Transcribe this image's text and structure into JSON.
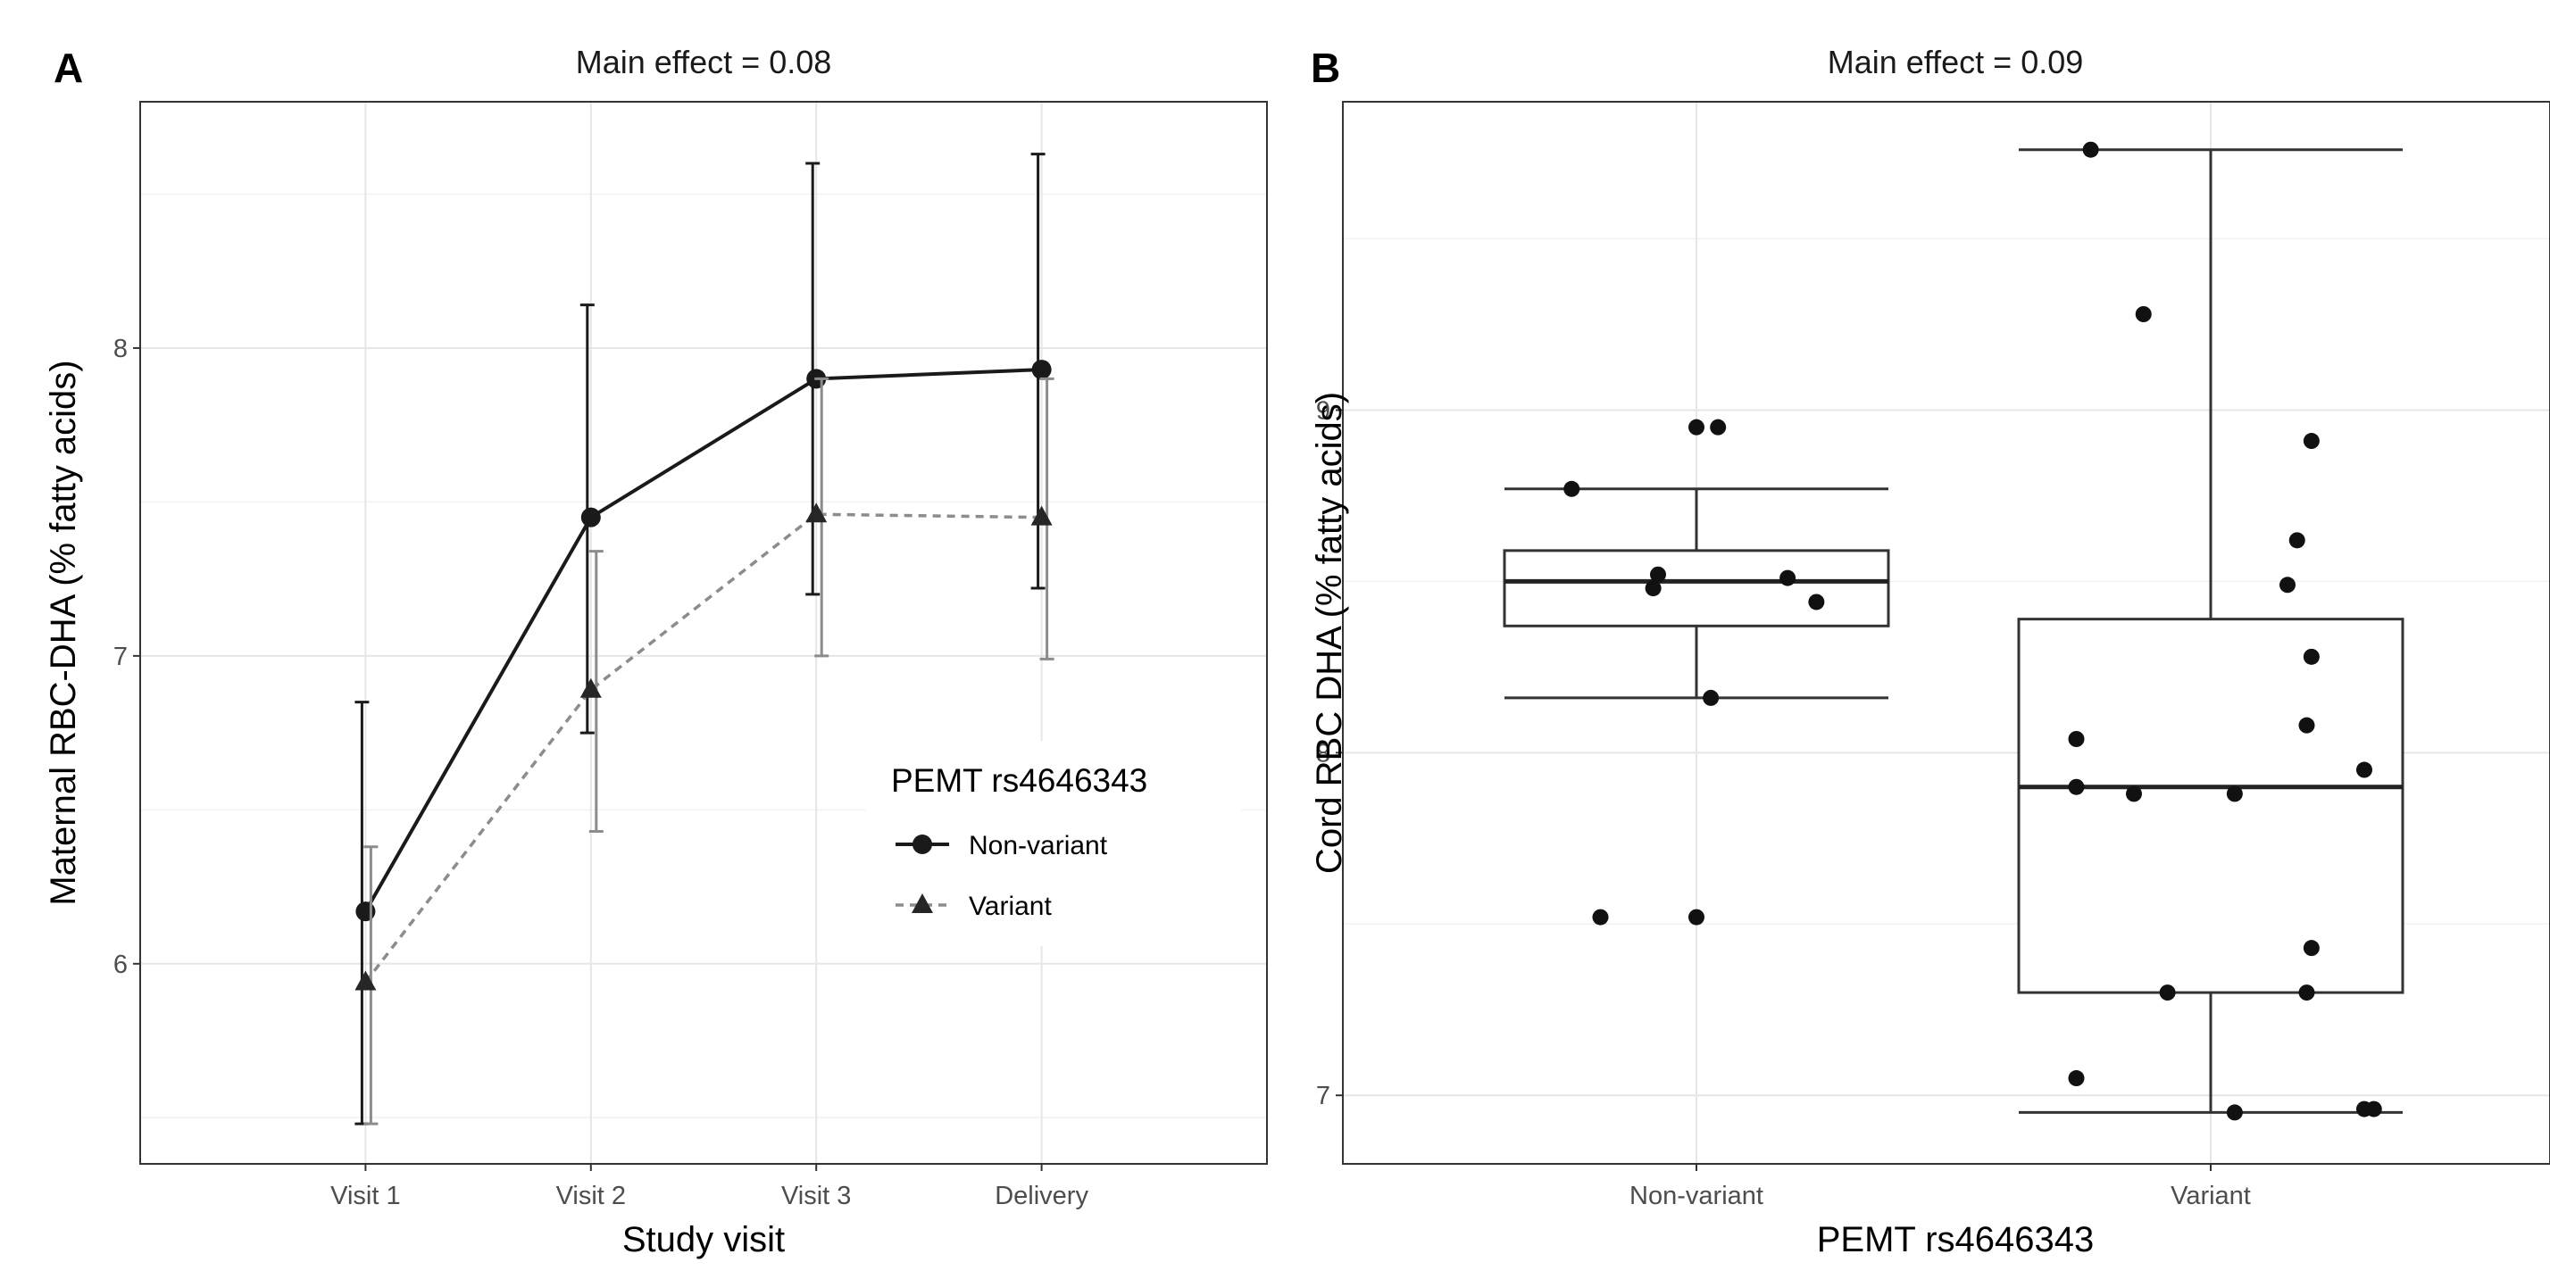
{
  "colors": {
    "non_variant": "#1a1a1a",
    "variant_line": "#8c8c8c",
    "variant_marker": "#262626",
    "grid": "#e6e6e6"
  },
  "panels": [
    {
      "letter": "A",
      "facet_title": "Main effect = 0.08"
    },
    {
      "letter": "B",
      "facet_title": "Main effect = 0.09"
    }
  ],
  "chart_data": [
    {
      "type": "line",
      "title": "Main effect = 0.08",
      "xlabel": "Study visit",
      "ylabel": "Maternal RBC-DHA (% fatty acids)",
      "categories": [
        "Visit 1",
        "Visit 2",
        "Visit 3",
        "Delivery"
      ],
      "ylim": [
        5.35,
        8.8
      ],
      "yticks": [
        6,
        7,
        8
      ],
      "legend_title": "PEMT rs4646343",
      "legend_position": "right",
      "series": [
        {
          "name": "Non-variant",
          "marker": "circle",
          "linestyle": "solid",
          "values": [
            6.17,
            7.45,
            7.9,
            7.93
          ],
          "lower": [
            5.48,
            6.75,
            7.2,
            7.22
          ],
          "upper": [
            6.85,
            8.14,
            8.6,
            8.63
          ]
        },
        {
          "name": "Variant",
          "marker": "triangle",
          "linestyle": "dashed",
          "values": [
            5.94,
            6.89,
            7.46,
            7.45
          ],
          "lower": [
            5.48,
            6.43,
            7.0,
            6.99
          ],
          "upper": [
            6.38,
            7.34,
            7.9,
            7.9
          ]
        }
      ]
    },
    {
      "type": "box",
      "title": "Main effect = 0.09",
      "xlabel": "PEMT rs4646343",
      "ylabel": "Cord RBC DHA (% fatty acids)",
      "categories": [
        "Non-variant",
        "Variant"
      ],
      "ylim": [
        6.8,
        9.9
      ],
      "yticks": [
        7,
        8,
        9
      ],
      "boxes": [
        {
          "name": "Non-variant",
          "whisker_low": 8.16,
          "q1": 8.37,
          "median": 8.5,
          "q3": 8.59,
          "whisker_high": 8.77
        },
        {
          "name": "Variant",
          "whisker_low": 6.95,
          "q1": 7.3,
          "median": 7.9,
          "q3": 8.39,
          "whisker_high": 9.76
        }
      ],
      "points": [
        {
          "group": "Non-variant",
          "jitter": -0.26,
          "y": 8.77
        },
        {
          "group": "Non-variant",
          "jitter": 0.0,
          "y": 8.95
        },
        {
          "group": "Non-variant",
          "jitter": 0.045,
          "y": 8.95
        },
        {
          "group": "Non-variant",
          "jitter": -0.08,
          "y": 8.52
        },
        {
          "group": "Non-variant",
          "jitter": -0.09,
          "y": 8.48
        },
        {
          "group": "Non-variant",
          "jitter": 0.19,
          "y": 8.51
        },
        {
          "group": "Non-variant",
          "jitter": 0.25,
          "y": 8.44
        },
        {
          "group": "Non-variant",
          "jitter": 0.03,
          "y": 8.16
        },
        {
          "group": "Non-variant",
          "jitter": -0.2,
          "y": 7.52
        },
        {
          "group": "Non-variant",
          "jitter": 0.0,
          "y": 7.52
        },
        {
          "group": "Variant",
          "jitter": -0.25,
          "y": 9.76
        },
        {
          "group": "Variant",
          "jitter": -0.14,
          "y": 9.28
        },
        {
          "group": "Variant",
          "jitter": 0.21,
          "y": 8.91
        },
        {
          "group": "Variant",
          "jitter": 0.18,
          "y": 8.62
        },
        {
          "group": "Variant",
          "jitter": 0.16,
          "y": 8.49
        },
        {
          "group": "Variant",
          "jitter": 0.21,
          "y": 8.28
        },
        {
          "group": "Variant",
          "jitter": 0.2,
          "y": 8.08
        },
        {
          "group": "Variant",
          "jitter": -0.28,
          "y": 8.04
        },
        {
          "group": "Variant",
          "jitter": 0.32,
          "y": 7.95
        },
        {
          "group": "Variant",
          "jitter": -0.28,
          "y": 7.9
        },
        {
          "group": "Variant",
          "jitter": -0.16,
          "y": 7.88
        },
        {
          "group": "Variant",
          "jitter": 0.05,
          "y": 7.88
        },
        {
          "group": "Variant",
          "jitter": 0.21,
          "y": 7.43
        },
        {
          "group": "Variant",
          "jitter": -0.09,
          "y": 7.3
        },
        {
          "group": "Variant",
          "jitter": 0.2,
          "y": 7.3
        },
        {
          "group": "Variant",
          "jitter": -0.28,
          "y": 7.05
        },
        {
          "group": "Variant",
          "jitter": 0.05,
          "y": 6.95
        },
        {
          "group": "Variant",
          "jitter": 0.32,
          "y": 6.96
        },
        {
          "group": "Variant",
          "jitter": 0.34,
          "y": 6.96
        }
      ]
    }
  ]
}
